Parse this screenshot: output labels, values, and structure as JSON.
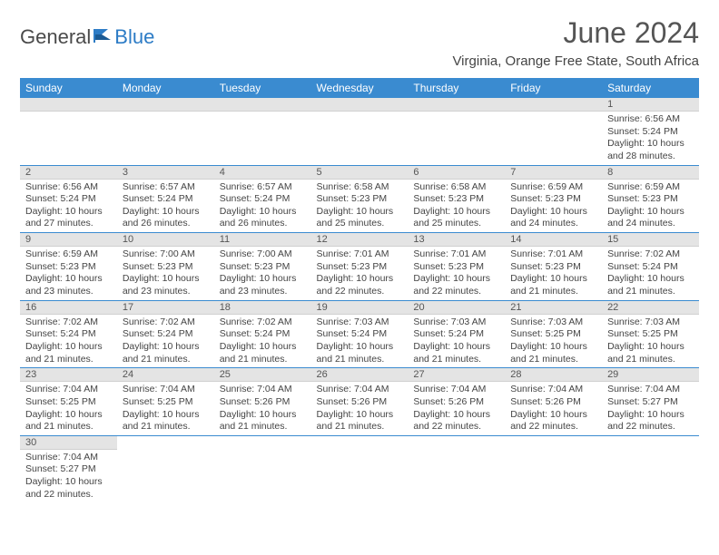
{
  "logo": {
    "text1": "General",
    "text2": "Blue"
  },
  "title": "June 2024",
  "location": "Virginia, Orange Free State, South Africa",
  "colors": {
    "header_bg": "#3a8bd0",
    "header_fg": "#ffffff",
    "daynum_bg": "#e4e4e4",
    "rule": "#3a8bd0",
    "logo_blue": "#2d7cc6",
    "text": "#444444"
  },
  "weekdays": [
    "Sunday",
    "Monday",
    "Tuesday",
    "Wednesday",
    "Thursday",
    "Friday",
    "Saturday"
  ],
  "weeks": [
    [
      null,
      null,
      null,
      null,
      null,
      null,
      {
        "n": "1",
        "sunrise": "6:56 AM",
        "sunset": "5:24 PM",
        "dl1": "Daylight: 10 hours",
        "dl2": "and 28 minutes."
      }
    ],
    [
      {
        "n": "2",
        "sunrise": "6:56 AM",
        "sunset": "5:24 PM",
        "dl1": "Daylight: 10 hours",
        "dl2": "and 27 minutes."
      },
      {
        "n": "3",
        "sunrise": "6:57 AM",
        "sunset": "5:24 PM",
        "dl1": "Daylight: 10 hours",
        "dl2": "and 26 minutes."
      },
      {
        "n": "4",
        "sunrise": "6:57 AM",
        "sunset": "5:24 PM",
        "dl1": "Daylight: 10 hours",
        "dl2": "and 26 minutes."
      },
      {
        "n": "5",
        "sunrise": "6:58 AM",
        "sunset": "5:23 PM",
        "dl1": "Daylight: 10 hours",
        "dl2": "and 25 minutes."
      },
      {
        "n": "6",
        "sunrise": "6:58 AM",
        "sunset": "5:23 PM",
        "dl1": "Daylight: 10 hours",
        "dl2": "and 25 minutes."
      },
      {
        "n": "7",
        "sunrise": "6:59 AM",
        "sunset": "5:23 PM",
        "dl1": "Daylight: 10 hours",
        "dl2": "and 24 minutes."
      },
      {
        "n": "8",
        "sunrise": "6:59 AM",
        "sunset": "5:23 PM",
        "dl1": "Daylight: 10 hours",
        "dl2": "and 24 minutes."
      }
    ],
    [
      {
        "n": "9",
        "sunrise": "6:59 AM",
        "sunset": "5:23 PM",
        "dl1": "Daylight: 10 hours",
        "dl2": "and 23 minutes."
      },
      {
        "n": "10",
        "sunrise": "7:00 AM",
        "sunset": "5:23 PM",
        "dl1": "Daylight: 10 hours",
        "dl2": "and 23 minutes."
      },
      {
        "n": "11",
        "sunrise": "7:00 AM",
        "sunset": "5:23 PM",
        "dl1": "Daylight: 10 hours",
        "dl2": "and 23 minutes."
      },
      {
        "n": "12",
        "sunrise": "7:01 AM",
        "sunset": "5:23 PM",
        "dl1": "Daylight: 10 hours",
        "dl2": "and 22 minutes."
      },
      {
        "n": "13",
        "sunrise": "7:01 AM",
        "sunset": "5:23 PM",
        "dl1": "Daylight: 10 hours",
        "dl2": "and 22 minutes."
      },
      {
        "n": "14",
        "sunrise": "7:01 AM",
        "sunset": "5:23 PM",
        "dl1": "Daylight: 10 hours",
        "dl2": "and 21 minutes."
      },
      {
        "n": "15",
        "sunrise": "7:02 AM",
        "sunset": "5:24 PM",
        "dl1": "Daylight: 10 hours",
        "dl2": "and 21 minutes."
      }
    ],
    [
      {
        "n": "16",
        "sunrise": "7:02 AM",
        "sunset": "5:24 PM",
        "dl1": "Daylight: 10 hours",
        "dl2": "and 21 minutes."
      },
      {
        "n": "17",
        "sunrise": "7:02 AM",
        "sunset": "5:24 PM",
        "dl1": "Daylight: 10 hours",
        "dl2": "and 21 minutes."
      },
      {
        "n": "18",
        "sunrise": "7:02 AM",
        "sunset": "5:24 PM",
        "dl1": "Daylight: 10 hours",
        "dl2": "and 21 minutes."
      },
      {
        "n": "19",
        "sunrise": "7:03 AM",
        "sunset": "5:24 PM",
        "dl1": "Daylight: 10 hours",
        "dl2": "and 21 minutes."
      },
      {
        "n": "20",
        "sunrise": "7:03 AM",
        "sunset": "5:24 PM",
        "dl1": "Daylight: 10 hours",
        "dl2": "and 21 minutes."
      },
      {
        "n": "21",
        "sunrise": "7:03 AM",
        "sunset": "5:25 PM",
        "dl1": "Daylight: 10 hours",
        "dl2": "and 21 minutes."
      },
      {
        "n": "22",
        "sunrise": "7:03 AM",
        "sunset": "5:25 PM",
        "dl1": "Daylight: 10 hours",
        "dl2": "and 21 minutes."
      }
    ],
    [
      {
        "n": "23",
        "sunrise": "7:04 AM",
        "sunset": "5:25 PM",
        "dl1": "Daylight: 10 hours",
        "dl2": "and 21 minutes."
      },
      {
        "n": "24",
        "sunrise": "7:04 AM",
        "sunset": "5:25 PM",
        "dl1": "Daylight: 10 hours",
        "dl2": "and 21 minutes."
      },
      {
        "n": "25",
        "sunrise": "7:04 AM",
        "sunset": "5:26 PM",
        "dl1": "Daylight: 10 hours",
        "dl2": "and 21 minutes."
      },
      {
        "n": "26",
        "sunrise": "7:04 AM",
        "sunset": "5:26 PM",
        "dl1": "Daylight: 10 hours",
        "dl2": "and 21 minutes."
      },
      {
        "n": "27",
        "sunrise": "7:04 AM",
        "sunset": "5:26 PM",
        "dl1": "Daylight: 10 hours",
        "dl2": "and 22 minutes."
      },
      {
        "n": "28",
        "sunrise": "7:04 AM",
        "sunset": "5:26 PM",
        "dl1": "Daylight: 10 hours",
        "dl2": "and 22 minutes."
      },
      {
        "n": "29",
        "sunrise": "7:04 AM",
        "sunset": "5:27 PM",
        "dl1": "Daylight: 10 hours",
        "dl2": "and 22 minutes."
      }
    ],
    [
      {
        "n": "30",
        "sunrise": "7:04 AM",
        "sunset": "5:27 PM",
        "dl1": "Daylight: 10 hours",
        "dl2": "and 22 minutes."
      },
      null,
      null,
      null,
      null,
      null,
      null
    ]
  ],
  "labels": {
    "sunrise": "Sunrise: ",
    "sunset": "Sunset: "
  }
}
